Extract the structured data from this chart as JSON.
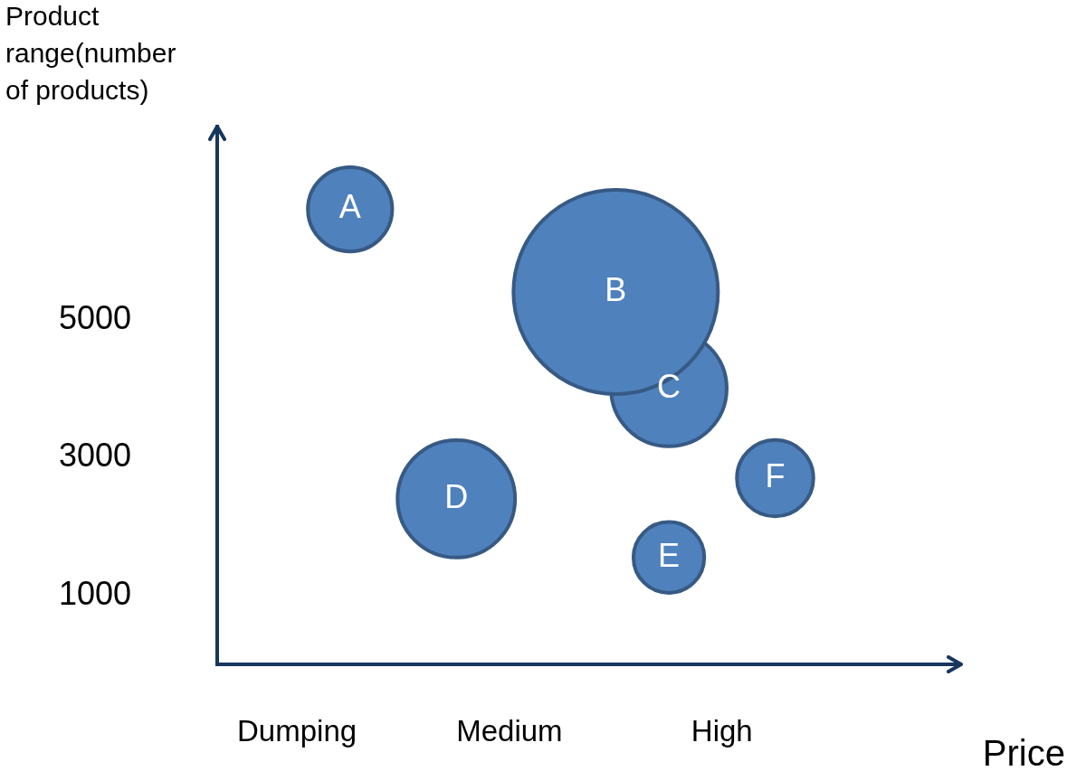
{
  "chart_data": {
    "type": "bubble",
    "xlabel": "Price",
    "ylabel": "Product range(number of products)",
    "categories": [
      null,
      "Dumping",
      null,
      null,
      null,
      "Medium",
      null,
      null,
      null,
      "High",
      null,
      null,
      null,
      null
    ],
    "ylim": [
      0,
      7800
    ],
    "yticks": [
      1000,
      3000,
      5000
    ],
    "grid": false,
    "legend": false,
    "series": [
      {
        "name": "A",
        "color": "#4f81bd",
        "values": [
          null,
          null,
          6600,
          null,
          null,
          null,
          null,
          null,
          null,
          null,
          null,
          null,
          null,
          null
        ],
        "sizes": [
          null,
          null,
          0.17,
          null,
          null,
          null,
          null,
          null,
          null,
          null,
          null,
          null,
          null,
          null
        ]
      },
      {
        "name": "B",
        "color": "#4f81bd",
        "values": [
          null,
          null,
          null,
          null,
          null,
          null,
          null,
          5400,
          null,
          null,
          null,
          null,
          null,
          null
        ],
        "sizes": [
          null,
          null,
          null,
          null,
          null,
          null,
          null,
          1,
          null,
          null,
          null,
          null,
          null,
          null
        ]
      },
      {
        "name": "C",
        "color": "#4f81bd",
        "values": [
          null,
          null,
          null,
          null,
          null,
          null,
          null,
          null,
          4000,
          null,
          null,
          null,
          null,
          null
        ],
        "sizes": [
          null,
          null,
          null,
          null,
          null,
          null,
          null,
          null,
          0.32,
          null,
          null,
          null,
          null,
          null
        ]
      },
      {
        "name": "D",
        "color": "#4f81bd",
        "values": [
          null,
          null,
          null,
          null,
          2400,
          null,
          null,
          null,
          null,
          null,
          null,
          null,
          null,
          null
        ],
        "sizes": [
          null,
          null,
          null,
          null,
          0.33,
          null,
          null,
          null,
          null,
          null,
          null,
          null,
          null,
          null
        ]
      },
      {
        "name": "E",
        "color": "#4f81bd",
        "values": [
          null,
          null,
          null,
          null,
          null,
          null,
          null,
          null,
          1550,
          null,
          null,
          null,
          null,
          null
        ],
        "sizes": [
          null,
          null,
          null,
          null,
          null,
          null,
          null,
          null,
          0.12,
          null,
          null,
          null,
          null,
          null
        ]
      },
      {
        "name": "F",
        "color": "#4f81bd",
        "values": [
          null,
          null,
          null,
          null,
          null,
          null,
          null,
          null,
          null,
          null,
          2700,
          null,
          null,
          null
        ],
        "sizes": [
          null,
          null,
          null,
          null,
          null,
          null,
          null,
          null,
          null,
          null,
          0.14,
          null,
          null,
          null
        ]
      }
    ]
  }
}
